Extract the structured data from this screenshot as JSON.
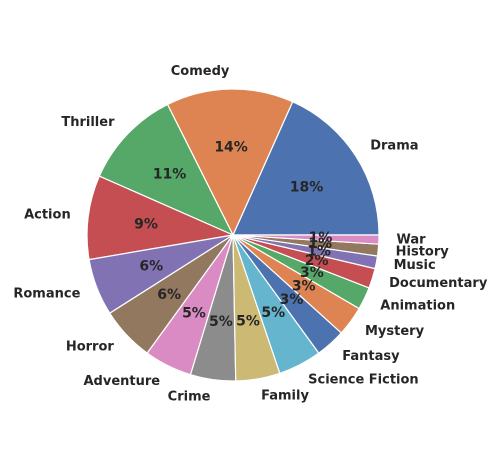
{
  "chart_data": {
    "type": "pie",
    "categories": [
      "Drama",
      "Comedy",
      "Thriller",
      "Action",
      "Romance",
      "Horror",
      "Adventure",
      "Crime",
      "Family",
      "Science Fiction",
      "Fantasy",
      "Mystery",
      "Animation",
      "Documentary",
      "Music",
      "History",
      "War"
    ],
    "values": [
      18.3,
      14.1,
      11.0,
      9.3,
      6.3,
      6.0,
      5.3,
      5.0,
      4.9,
      4.8,
      3.3,
      3.3,
      2.5,
      2.2,
      1.4,
      1.3,
      1.0
    ],
    "percent_labels": [
      "18%",
      "14%",
      "11%",
      "9%",
      "6%",
      "6%",
      "5%",
      "5%",
      "5%",
      "5%",
      "3%",
      "3%",
      "3%",
      "2%",
      "1%",
      "1%",
      "1%"
    ],
    "colors": [
      "#4c72b0",
      "#dd8452",
      "#55a868",
      "#c44e52",
      "#8172b3",
      "#937860",
      "#da8bc3",
      "#8c8c8c",
      "#ccb974",
      "#64b5cd",
      "#4c72b0",
      "#dd8452",
      "#55a868",
      "#c44e52",
      "#8172b3",
      "#937860",
      "#da8bc3"
    ],
    "start_angle_deg": 0,
    "direction": "counterclockwise"
  }
}
